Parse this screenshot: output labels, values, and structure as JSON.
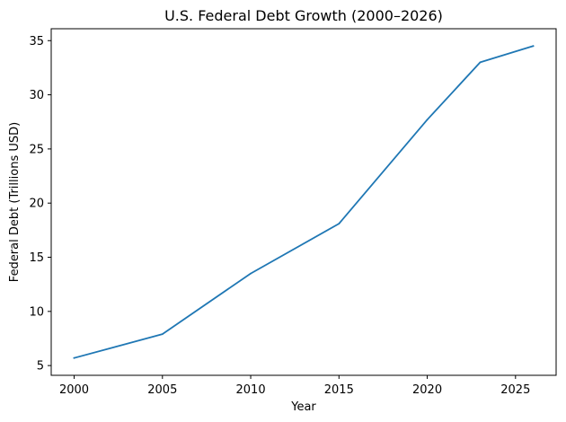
{
  "chart_data": {
    "type": "line",
    "title": "U.S. Federal Debt Growth (2000–2026)",
    "xlabel": "Year",
    "ylabel": "Federal Debt (Trillions USD)",
    "xlim": [
      1998.7,
      2027.3
    ],
    "ylim": [
      4.1,
      36.1
    ],
    "x_ticks": [
      2000,
      2005,
      2010,
      2015,
      2020,
      2025
    ],
    "y_ticks": [
      5,
      10,
      15,
      20,
      25,
      30,
      35
    ],
    "grid": false,
    "series": [
      {
        "color": "#1f77b4",
        "x": [
          2000,
          2005,
          2010,
          2015,
          2020,
          2023,
          2026
        ],
        "y": [
          5.7,
          7.9,
          13.5,
          18.1,
          27.7,
          33.0,
          34.5
        ]
      }
    ]
  }
}
